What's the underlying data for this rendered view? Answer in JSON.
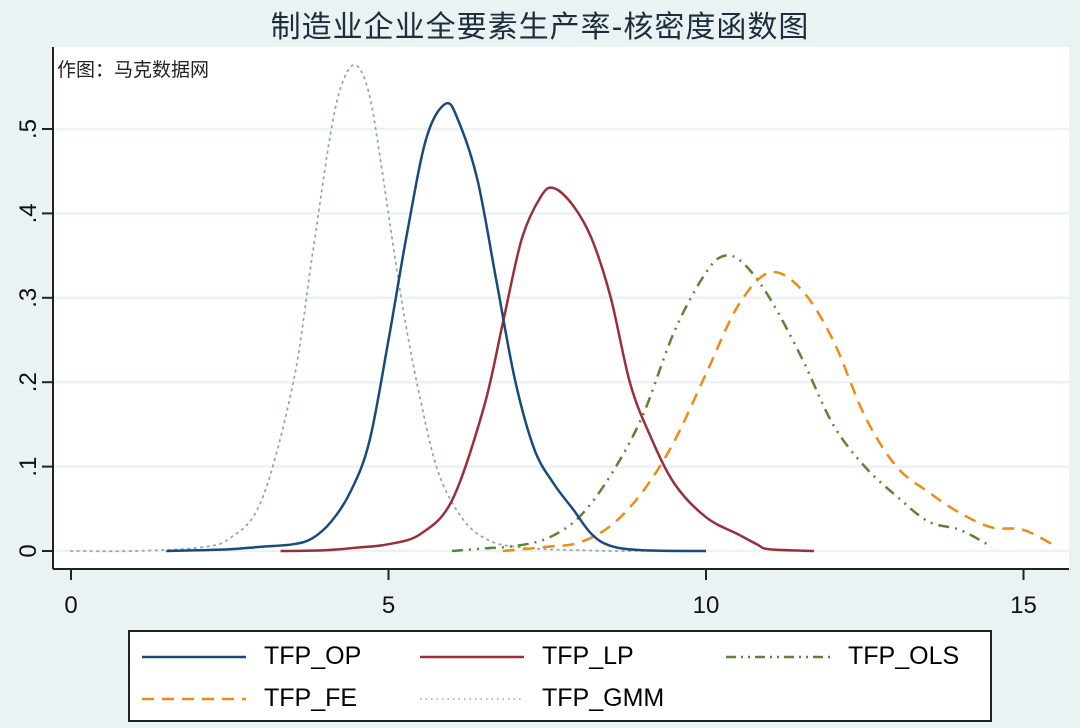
{
  "title": "制造业企业全要素生产率-核密度函数图",
  "watermark": "作图：马克数据网",
  "colors": {
    "background": "#eaf2f3",
    "plot_background": "#ffffff",
    "gridline": "#eaf2f3",
    "axis": "#222222"
  },
  "axes": {
    "x_ticks": [
      "0",
      "5",
      "10",
      "15"
    ],
    "y_ticks": [
      "0",
      ".1",
      ".2",
      ".3",
      ".4",
      ".5"
    ]
  },
  "legend": {
    "items": [
      {
        "label": "TFP_OP",
        "color": "#1a4a7a",
        "style": "solid"
      },
      {
        "label": "TFP_LP",
        "color": "#9a2f3c",
        "style": "solid"
      },
      {
        "label": "TFP_OLS",
        "color": "#5b8434",
        "style": "dashdot"
      },
      {
        "label": "TFP_FE",
        "color": "#f08a14",
        "style": "dash"
      },
      {
        "label": "TFP_GMM",
        "color": "#8fa8a8",
        "style": "dot"
      }
    ]
  },
  "chart_data": {
    "type": "line",
    "title": "制造业企业全要素生产率-核密度函数图",
    "xlabel": "",
    "ylabel": "",
    "xlim": [
      -0.3,
      15.7
    ],
    "ylim": [
      -0.02,
      0.6
    ],
    "xticks": [
      0,
      5,
      10,
      15
    ],
    "yticks": [
      0,
      0.1,
      0.2,
      0.3,
      0.4,
      0.5
    ],
    "grid": "horizontal",
    "legend_position": "bottom",
    "annotations": [
      "作图：马克数据网"
    ],
    "series": [
      {
        "name": "TFP_OP",
        "color": "#1a4a7a",
        "style": "solid",
        "x": [
          1.5,
          2.0,
          2.5,
          3.0,
          3.5,
          3.8,
          4.1,
          4.4,
          4.7,
          5.0,
          5.3,
          5.6,
          5.9,
          6.1,
          6.4,
          6.7,
          7.0,
          7.3,
          7.6,
          7.9,
          8.2,
          8.5,
          9.0,
          10.0
        ],
        "y": [
          0.0,
          0.001,
          0.002,
          0.005,
          0.008,
          0.015,
          0.035,
          0.07,
          0.13,
          0.25,
          0.38,
          0.49,
          0.53,
          0.51,
          0.44,
          0.32,
          0.2,
          0.12,
          0.08,
          0.05,
          0.02,
          0.006,
          0.001,
          0.0
        ]
      },
      {
        "name": "TFP_LP",
        "color": "#9a2f3c",
        "style": "solid",
        "x": [
          3.3,
          4.0,
          4.5,
          5.0,
          5.5,
          6.0,
          6.5,
          6.8,
          7.1,
          7.4,
          7.6,
          7.9,
          8.2,
          8.5,
          8.8,
          9.1,
          9.5,
          10.0,
          10.5,
          10.8,
          11.0,
          11.7
        ],
        "y": [
          0.0,
          0.001,
          0.004,
          0.008,
          0.02,
          0.06,
          0.17,
          0.27,
          0.37,
          0.42,
          0.43,
          0.41,
          0.37,
          0.3,
          0.2,
          0.14,
          0.08,
          0.04,
          0.02,
          0.008,
          0.002,
          0.0
        ]
      },
      {
        "name": "TFP_OLS",
        "color": "#5b8434",
        "style": "dashdot",
        "x": [
          6.0,
          6.5,
          7.0,
          7.5,
          8.0,
          8.5,
          9.0,
          9.5,
          10.0,
          10.3,
          10.6,
          11.0,
          11.5,
          12.0,
          12.5,
          13.0,
          13.5,
          14.0,
          14.5
        ],
        "y": [
          0.0,
          0.003,
          0.006,
          0.015,
          0.04,
          0.09,
          0.16,
          0.26,
          0.33,
          0.35,
          0.34,
          0.3,
          0.23,
          0.15,
          0.1,
          0.065,
          0.035,
          0.025,
          0.005
        ]
      },
      {
        "name": "TFP_FE",
        "color": "#f08a14",
        "style": "dash",
        "x": [
          6.8,
          7.5,
          8.0,
          8.5,
          9.0,
          9.5,
          10.0,
          10.5,
          11.0,
          11.5,
          12.0,
          12.5,
          13.0,
          13.5,
          14.0,
          14.5,
          15.0,
          15.5
        ],
        "y": [
          0.0,
          0.005,
          0.01,
          0.03,
          0.07,
          0.13,
          0.21,
          0.29,
          0.33,
          0.31,
          0.25,
          0.16,
          0.1,
          0.07,
          0.045,
          0.028,
          0.025,
          0.006
        ]
      },
      {
        "name": "TFP_GMM",
        "color": "#8fa8a8",
        "style": "dot",
        "x": [
          0.0,
          1.0,
          2.0,
          2.5,
          3.0,
          3.5,
          3.8,
          4.1,
          4.3,
          4.5,
          4.7,
          4.9,
          5.2,
          5.5,
          5.8,
          6.2,
          6.6,
          7.0,
          7.5,
          8.0,
          8.5,
          9.0
        ],
        "y": [
          0.0,
          0.0,
          0.004,
          0.015,
          0.06,
          0.2,
          0.35,
          0.5,
          0.56,
          0.575,
          0.54,
          0.45,
          0.3,
          0.18,
          0.09,
          0.035,
          0.012,
          0.005,
          0.002,
          0.001,
          0.0,
          0.0
        ]
      }
    ]
  }
}
